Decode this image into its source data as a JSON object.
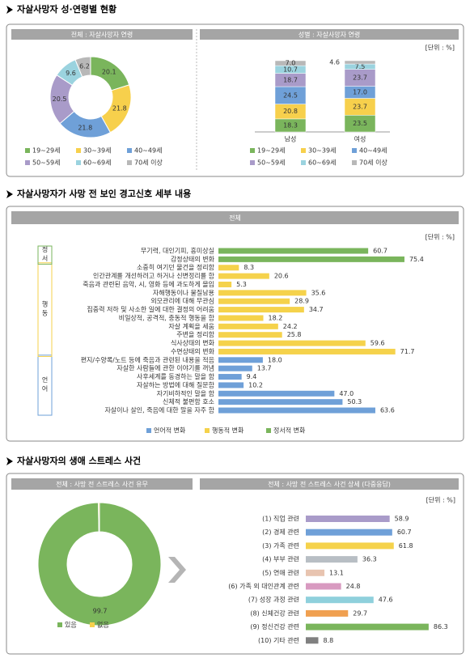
{
  "headings": [
    "자살사망자 성·연령별 현황",
    "자살사망자가 사망 전 보인 경고신호 세부 내용",
    "자살사망자의 생애 스트레스 사건"
  ],
  "chart_data": [
    {
      "type": "donut",
      "title": "전체 : 자살사망자 연령",
      "categories": [
        "19~29세",
        "30~39세",
        "40~49세",
        "50~59세",
        "60~69세",
        "70세 이상"
      ],
      "values": [
        20.1,
        21.8,
        21.8,
        20.5,
        9.6,
        6.2
      ],
      "colors": [
        "#7ab55c",
        "#f7d04c",
        "#6fa0d8",
        "#a99bc9",
        "#9bd3df",
        "#b8b8b8"
      ]
    },
    {
      "type": "stacked-bar",
      "title": "성별 : 자살사망자 연령",
      "unit": "[단위 : %]",
      "categories": [
        "남성",
        "여성"
      ],
      "series": [
        {
          "name": "19~29세",
          "color": "#7ab55c",
          "values": [
            18.3,
            23.5
          ]
        },
        {
          "name": "30~39세",
          "color": "#f7d04c",
          "values": [
            20.8,
            23.7
          ]
        },
        {
          "name": "40~49세",
          "color": "#6fa0d8",
          "values": [
            24.5,
            17.0
          ],
          "value_labels": [
            "24.5",
            "17.0"
          ]
        },
        {
          "name": "50~59세",
          "color": "#a99bc9",
          "values": [
            18.7,
            23.7
          ]
        },
        {
          "name": "60~69세",
          "color": "#9bd3df",
          "values": [
            10.7,
            7.5
          ]
        },
        {
          "name": "70세 이상",
          "color": "#b8b8b8",
          "values": [
            7.0,
            4.6
          ],
          "value_labels": [
            "7.0",
            "4.6"
          ]
        }
      ]
    },
    {
      "type": "grouped-hbar",
      "title": "전체",
      "unit": "[단위 : %]",
      "categories": [
        "무기력, 대인기피, 흥미상실",
        "감정상태의 변화",
        "소중히 여기던 물건을 정리함",
        "인간관계를 개선하려고 하거나 신변정리를 함",
        "죽음과 관련된 음악, 시, 영화 등에 과도하게 몰입",
        "자해행동이나 물질남용",
        "외모관리에 대해 무관심",
        "집중력 저하 및 사소한 일에 대한 결정의 어려움",
        "비일상적, 공격적, 충동적 행동을 함",
        "자살 계획을 세움",
        "주변을 정리함",
        "식사상태의 변화",
        "수면상태의 변화",
        "편지/수양록/노트 등에 죽음과 관련된 내용을 적음",
        "자살한 사람들에 관한 이야기를 꺼냄",
        "사후세계를 동경하는 말을 함",
        "자살하는 방법에 대해 질문함",
        "자기비하적인 말을 함",
        "신체적 불편함 호소",
        "자살이나 살인, 죽음에 대한 말을 자주 함"
      ],
      "series": [
        {
          "name": "언어적 변화",
          "label": "언어",
          "color": "#6fa0d8",
          "values": [
            null,
            null,
            null,
            null,
            null,
            null,
            null,
            null,
            null,
            null,
            null,
            null,
            null,
            18.0,
            13.7,
            9.4,
            10.2,
            47.0,
            50.3,
            63.6
          ],
          "value_labels": [
            null,
            null,
            null,
            null,
            null,
            null,
            null,
            null,
            null,
            null,
            null,
            null,
            null,
            "18.0",
            "13.7",
            "9.4",
            "10.2",
            "47.0",
            "50.3",
            "63.6"
          ]
        },
        {
          "name": "행동적 변화",
          "label": "행동",
          "color": "#f5d24b",
          "values": [
            null,
            null,
            8.3,
            20.6,
            5.3,
            35.6,
            28.9,
            34.7,
            18.2,
            24.2,
            25.8,
            59.6,
            71.7,
            null,
            null,
            null,
            null,
            null,
            null,
            null
          ]
        },
        {
          "name": "정서적 변화",
          "label": "정서",
          "color": "#7ab55c",
          "values": [
            60.7,
            75.4,
            null,
            null,
            null,
            null,
            null,
            null,
            null,
            null,
            null,
            null,
            null,
            null,
            null,
            null,
            null,
            null,
            null,
            null
          ]
        }
      ]
    },
    {
      "type": "donut",
      "title": "전체 : 사망 전 스트레스 사건 유무",
      "categories": [
        "있음",
        "없음"
      ],
      "values": [
        99.7,
        0.3
      ],
      "colors": [
        "#7ab55c",
        "#f7d04c"
      ]
    },
    {
      "type": "hbar",
      "title": "전체 : 사망 전 스트레스 사건 상세 (다중응답)",
      "unit": "[단위 : %]",
      "categories": [
        "(1) 직업 관련",
        "(2) 경제 관련",
        "(3) 가족 관련",
        "(4) 부부 관련",
        "(5) 연애 관련",
        "(6) 가족 외 대인관계 관련",
        "(7) 성장 과정 관련",
        "(8) 신체건강 관련",
        "(9) 정신건강 관련",
        "(10) 기타 관련"
      ],
      "values": [
        58.9,
        60.7,
        61.8,
        36.3,
        13.1,
        24.8,
        47.6,
        29.7,
        86.3,
        8.8
      ],
      "colors": [
        "#a99bc9",
        "#6fa0d8",
        "#f5d24b",
        "#b8bec4",
        "#e8c4b0",
        "#d89ac0",
        "#8fd0dc",
        "#f0a050",
        "#7ab55c",
        "#808080"
      ]
    }
  ]
}
